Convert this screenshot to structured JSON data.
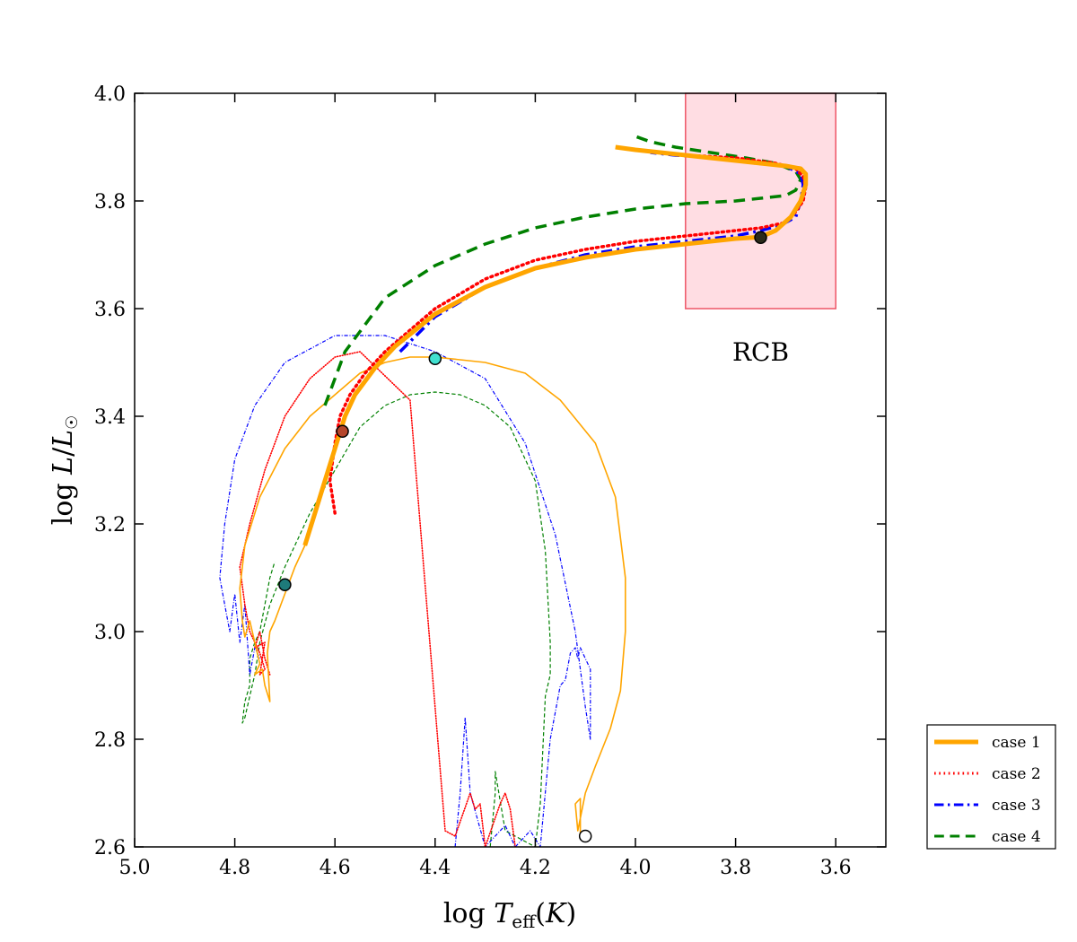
{
  "chart_data": {
    "type": "line",
    "title": "",
    "xlabel": "log T_eff(K)",
    "ylabel": "log L/L_sun",
    "xlabel_parts": {
      "prefix": "log ",
      "var": "T",
      "sub": "eff",
      "suffix": "(K)"
    },
    "ylabel_parts": {
      "prefix": "log ",
      "var": "L",
      "slash": "/",
      "var2": "L",
      "sun": "☉"
    },
    "xlim": [
      5.0,
      3.5
    ],
    "ylim": [
      2.6,
      4.0
    ],
    "xticks": [
      "5.0",
      "4.8",
      "4.6",
      "4.4",
      "4.2",
      "4.0",
      "3.8",
      "3.6"
    ],
    "xtick_values": [
      5.0,
      4.8,
      4.6,
      4.4,
      4.2,
      4.0,
      3.8,
      3.6
    ],
    "yticks": [
      "2.6",
      "2.8",
      "3.0",
      "3.2",
      "3.4",
      "3.6",
      "3.8",
      "4.0"
    ],
    "ytick_values": [
      2.6,
      2.8,
      3.0,
      3.2,
      3.4,
      3.6,
      3.8,
      4.0
    ],
    "region": {
      "label": "RCB",
      "x": [
        3.9,
        3.6
      ],
      "y": [
        3.6,
        4.0
      ],
      "fill": "#ffdde3",
      "stroke": "#ee5566"
    },
    "legend": {
      "position": "lower-right-outside",
      "entries": [
        {
          "label": "case 1",
          "color": "#ffa500",
          "style": "solid"
        },
        {
          "label": "case 2",
          "color": "#ff0000",
          "style": "dotted"
        },
        {
          "label": "case 3",
          "color": "#0000ff",
          "style": "dashdot"
        },
        {
          "label": "case 4",
          "color": "#008000",
          "style": "dashed"
        }
      ]
    },
    "series": [
      {
        "name": "case 4 early",
        "color": "#008000",
        "style": "dashed",
        "width": 1.2,
        "x": [
          4.29,
          4.28,
          4.28,
          4.26,
          4.22,
          4.2,
          4.19,
          4.18,
          4.17,
          4.17,
          4.18,
          4.2,
          4.25,
          4.3,
          4.35,
          4.4,
          4.45,
          4.5,
          4.55,
          4.6,
          4.65,
          4.7,
          4.73,
          4.75,
          4.76,
          4.77,
          4.78,
          4.785,
          4.78,
          4.77,
          4.77,
          4.76,
          4.75,
          4.74,
          4.73,
          4.72
        ],
        "y": [
          2.6,
          2.7,
          2.74,
          2.63,
          2.61,
          2.6,
          2.68,
          2.88,
          2.92,
          2.98,
          3.15,
          3.28,
          3.38,
          3.42,
          3.44,
          3.445,
          3.44,
          3.42,
          3.38,
          3.3,
          3.22,
          3.12,
          3.05,
          2.98,
          2.92,
          2.88,
          2.84,
          2.83,
          2.87,
          2.9,
          2.95,
          2.98,
          3.0,
          3.05,
          3.1,
          3.13
        ]
      },
      {
        "name": "case 3 early",
        "color": "#0000ff",
        "style": "dashdot",
        "width": 1.2,
        "x": [
          4.36,
          4.35,
          4.34,
          4.33,
          4.3,
          4.26,
          4.24,
          4.21,
          4.19,
          4.17,
          4.15,
          4.14,
          4.13,
          4.12,
          4.115,
          4.11,
          4.09,
          4.09,
          4.09,
          4.1,
          4.12,
          4.16,
          4.22,
          4.3,
          4.4,
          4.5,
          4.6,
          4.7,
          4.76,
          4.8,
          4.82,
          4.83,
          4.82,
          4.81,
          4.8,
          4.79,
          4.78,
          4.77,
          4.76,
          4.75
        ],
        "y": [
          2.6,
          2.7,
          2.84,
          2.7,
          2.6,
          2.64,
          2.6,
          2.63,
          2.6,
          2.8,
          2.9,
          2.91,
          2.96,
          2.97,
          2.95,
          2.97,
          2.93,
          2.88,
          2.8,
          2.86,
          3.0,
          3.18,
          3.35,
          3.47,
          3.52,
          3.55,
          3.55,
          3.5,
          3.42,
          3.32,
          3.2,
          3.1,
          3.05,
          3.0,
          3.07,
          2.98,
          3.05,
          2.92,
          2.97,
          2.95
        ]
      },
      {
        "name": "case 2 early",
        "color": "#ff0000",
        "style": "dotted",
        "width": 1.6,
        "x": [
          4.24,
          4.25,
          4.26,
          4.27,
          4.3,
          4.31,
          4.32,
          4.33,
          4.36,
          4.38,
          4.45,
          4.55,
          4.6,
          4.65,
          4.7,
          4.74,
          4.77,
          4.79,
          4.78,
          4.77,
          4.76,
          4.75,
          4.74,
          4.75,
          4.74,
          4.76,
          4.75,
          4.74,
          4.73
        ],
        "y": [
          2.6,
          2.67,
          2.7,
          2.68,
          2.6,
          2.68,
          2.67,
          2.7,
          2.62,
          2.63,
          3.43,
          3.52,
          3.51,
          3.47,
          3.4,
          3.3,
          3.2,
          3.12,
          3.05,
          3.0,
          2.98,
          2.96,
          2.93,
          2.92,
          2.98,
          2.97,
          3.0,
          2.95,
          2.92
        ]
      },
      {
        "name": "case 1 early",
        "color": "#ffa500",
        "style": "solid",
        "width": 1.6,
        "x": [
          4.1,
          4.11,
          4.11,
          4.12,
          4.115,
          4.1,
          4.08,
          4.05,
          4.03,
          4.02,
          4.02,
          4.04,
          4.08,
          4.15,
          4.22,
          4.3,
          4.4,
          4.45,
          4.5,
          4.55,
          4.6,
          4.65,
          4.7,
          4.75,
          4.78,
          4.79,
          4.785,
          4.78,
          4.77,
          4.76,
          4.75,
          4.76,
          4.745,
          4.74,
          4.73,
          4.735,
          4.73,
          4.72,
          4.7,
          4.68,
          4.66,
          4.65
        ],
        "y": [
          2.62,
          2.62,
          2.69,
          2.68,
          2.63,
          2.7,
          2.75,
          2.82,
          2.89,
          3.0,
          3.1,
          3.25,
          3.35,
          3.43,
          3.48,
          3.5,
          3.51,
          3.51,
          3.5,
          3.48,
          3.44,
          3.4,
          3.34,
          3.25,
          3.16,
          3.08,
          3.02,
          2.99,
          3.02,
          2.98,
          2.94,
          2.92,
          2.93,
          2.9,
          2.87,
          2.96,
          3.0,
          3.02,
          3.07,
          3.12,
          3.16,
          3.2
        ]
      },
      {
        "name": "case 4",
        "color": "#008000",
        "style": "dashed",
        "width": 3.5,
        "x": [
          4.62,
          4.58,
          4.5,
          4.4,
          4.3,
          4.2,
          4.1,
          4.0,
          3.9,
          3.8,
          3.75,
          3.7,
          3.68,
          3.67,
          3.68,
          3.72,
          3.78,
          3.85,
          3.92,
          3.97,
          4.0
        ],
        "y": [
          3.42,
          3.52,
          3.62,
          3.68,
          3.72,
          3.75,
          3.77,
          3.785,
          3.795,
          3.8,
          3.805,
          3.81,
          3.82,
          3.84,
          3.855,
          3.87,
          3.88,
          3.89,
          3.9,
          3.91,
          3.92
        ]
      },
      {
        "name": "case 3",
        "color": "#0000ff",
        "style": "dashdot",
        "width": 3.5,
        "x": [
          4.47,
          4.4,
          4.3,
          4.2,
          4.1,
          4.0,
          3.9,
          3.8,
          3.75,
          3.71,
          3.68,
          3.67,
          3.665,
          3.67,
          3.7,
          3.76,
          3.84,
          3.92,
          3.97
        ],
        "y": [
          3.52,
          3.585,
          3.64,
          3.675,
          3.7,
          3.715,
          3.725,
          3.735,
          3.745,
          3.755,
          3.77,
          3.8,
          3.83,
          3.85,
          3.865,
          3.87,
          3.88,
          3.885,
          3.89
        ]
      },
      {
        "name": "case 2",
        "color": "#ff0000",
        "style": "dotted",
        "width": 3.5,
        "x": [
          4.6,
          4.61,
          4.6,
          4.59,
          4.57,
          4.54,
          4.5,
          4.45,
          4.4,
          4.3,
          4.2,
          4.1,
          4.0,
          3.9,
          3.8,
          3.75,
          3.7,
          3.68,
          3.665,
          3.66,
          3.665,
          3.68,
          3.72,
          3.8,
          3.9,
          3.95
        ],
        "y": [
          3.22,
          3.28,
          3.35,
          3.4,
          3.44,
          3.48,
          3.52,
          3.56,
          3.6,
          3.655,
          3.69,
          3.71,
          3.725,
          3.735,
          3.745,
          3.75,
          3.76,
          3.78,
          3.8,
          3.825,
          3.845,
          3.86,
          3.87,
          3.88,
          3.885,
          3.89
        ]
      },
      {
        "name": "case 1",
        "color": "#ffa500",
        "style": "solid",
        "width": 5,
        "x": [
          4.66,
          4.64,
          4.62,
          4.6,
          4.59,
          4.58,
          4.56,
          4.52,
          4.48,
          4.44,
          4.4,
          4.3,
          4.2,
          4.1,
          4.0,
          3.9,
          3.8,
          3.75,
          3.72,
          3.69,
          3.67,
          3.66,
          3.66,
          3.67,
          3.7,
          3.75,
          3.8,
          3.85,
          3.9,
          3.95,
          4.0,
          4.04
        ],
        "y": [
          3.16,
          3.22,
          3.28,
          3.34,
          3.37,
          3.4,
          3.44,
          3.49,
          3.53,
          3.56,
          3.59,
          3.64,
          3.675,
          3.695,
          3.71,
          3.72,
          3.73,
          3.733,
          3.745,
          3.77,
          3.8,
          3.83,
          3.85,
          3.86,
          3.865,
          3.87,
          3.875,
          3.88,
          3.885,
          3.89,
          3.895,
          3.9
        ]
      }
    ],
    "markers": [
      {
        "name": "teal-point",
        "x": 4.7,
        "y": 3.087,
        "fill": "#1e7a7a"
      },
      {
        "name": "brown-point",
        "x": 4.585,
        "y": 3.372,
        "fill": "#b5452a"
      },
      {
        "name": "cyan-point",
        "x": 4.4,
        "y": 3.507,
        "fill": "#40e0d0"
      },
      {
        "name": "dark-point",
        "x": 3.75,
        "y": 3.732,
        "fill": "#2a2a1a"
      },
      {
        "name": "open-point",
        "x": 4.1,
        "y": 2.62,
        "fill": "#ffffff"
      }
    ]
  }
}
